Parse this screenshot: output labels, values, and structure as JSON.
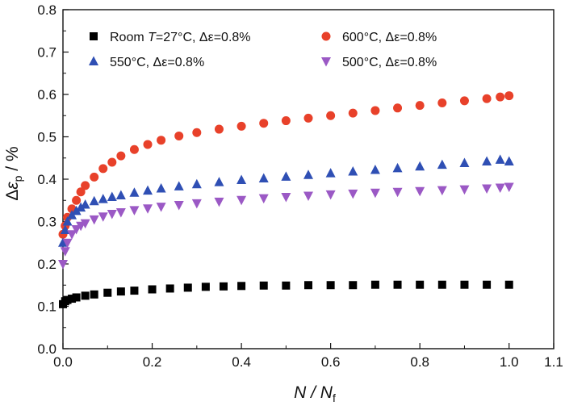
{
  "chart_data": {
    "type": "scatter",
    "xlabel": "N / Nf",
    "ylabel": "Δεp / %",
    "xlim": [
      0.0,
      1.1
    ],
    "ylim": [
      0.0,
      0.8
    ],
    "xticks": [
      "0.0",
      "0.2",
      "0.4",
      "0.6",
      "0.8",
      "1.0",
      "1.1"
    ],
    "yticks": [
      "0.0",
      "0.1",
      "0.2",
      "0.3",
      "0.4",
      "0.5",
      "0.6",
      "0.7",
      "0.8"
    ],
    "grid": false,
    "legend_position": "top",
    "series": [
      {
        "name": "Room T=27°C, Δε=0.8%",
        "marker": "square",
        "color": "#000000",
        "x": [
          0.0,
          0.005,
          0.01,
          0.02,
          0.03,
          0.05,
          0.07,
          0.1,
          0.13,
          0.16,
          0.2,
          0.24,
          0.28,
          0.32,
          0.36,
          0.4,
          0.45,
          0.5,
          0.55,
          0.6,
          0.65,
          0.7,
          0.75,
          0.8,
          0.85,
          0.9,
          0.95,
          1.0
        ],
        "y": [
          0.105,
          0.112,
          0.115,
          0.118,
          0.121,
          0.125,
          0.128,
          0.132,
          0.135,
          0.137,
          0.14,
          0.142,
          0.144,
          0.146,
          0.147,
          0.148,
          0.149,
          0.149,
          0.15,
          0.15,
          0.15,
          0.151,
          0.151,
          0.151,
          0.151,
          0.151,
          0.151,
          0.151
        ]
      },
      {
        "name": "600°C, Δε=0.8%",
        "marker": "circle",
        "color": "#e8412a",
        "x": [
          0.0,
          0.005,
          0.01,
          0.02,
          0.03,
          0.04,
          0.05,
          0.07,
          0.09,
          0.11,
          0.13,
          0.16,
          0.19,
          0.22,
          0.26,
          0.3,
          0.35,
          0.4,
          0.45,
          0.5,
          0.55,
          0.6,
          0.65,
          0.7,
          0.75,
          0.8,
          0.85,
          0.9,
          0.95,
          0.98,
          1.0
        ],
        "y": [
          0.27,
          0.29,
          0.31,
          0.33,
          0.35,
          0.37,
          0.385,
          0.405,
          0.425,
          0.44,
          0.455,
          0.47,
          0.482,
          0.492,
          0.502,
          0.51,
          0.518,
          0.525,
          0.532,
          0.538,
          0.544,
          0.55,
          0.556,
          0.562,
          0.568,
          0.574,
          0.58,
          0.585,
          0.59,
          0.594,
          0.597
        ]
      },
      {
        "name": "550°C, Δε=0.8%",
        "marker": "triangle-up",
        "color": "#2f4fb4",
        "x": [
          0.0,
          0.005,
          0.01,
          0.02,
          0.03,
          0.04,
          0.05,
          0.07,
          0.09,
          0.11,
          0.13,
          0.16,
          0.19,
          0.22,
          0.26,
          0.3,
          0.35,
          0.4,
          0.45,
          0.5,
          0.55,
          0.6,
          0.65,
          0.7,
          0.75,
          0.8,
          0.85,
          0.9,
          0.95,
          0.98,
          1.0
        ],
        "y": [
          0.25,
          0.28,
          0.3,
          0.315,
          0.325,
          0.333,
          0.34,
          0.348,
          0.353,
          0.358,
          0.362,
          0.368,
          0.373,
          0.378,
          0.383,
          0.388,
          0.393,
          0.398,
          0.402,
          0.406,
          0.41,
          0.414,
          0.418,
          0.422,
          0.426,
          0.43,
          0.434,
          0.438,
          0.442,
          0.446,
          0.442
        ]
      },
      {
        "name": "500°C, Δε=0.8%",
        "marker": "triangle-down",
        "color": "#9b59c5",
        "x": [
          0.0,
          0.005,
          0.01,
          0.02,
          0.03,
          0.04,
          0.05,
          0.07,
          0.09,
          0.11,
          0.13,
          0.16,
          0.19,
          0.22,
          0.26,
          0.3,
          0.35,
          0.4,
          0.45,
          0.5,
          0.55,
          0.6,
          0.65,
          0.7,
          0.75,
          0.8,
          0.85,
          0.9,
          0.95,
          0.98,
          1.0
        ],
        "y": [
          0.2,
          0.23,
          0.25,
          0.27,
          0.282,
          0.29,
          0.296,
          0.305,
          0.312,
          0.318,
          0.322,
          0.327,
          0.331,
          0.335,
          0.339,
          0.343,
          0.347,
          0.351,
          0.355,
          0.358,
          0.361,
          0.364,
          0.366,
          0.368,
          0.37,
          0.372,
          0.374,
          0.376,
          0.378,
          0.38,
          0.382
        ]
      }
    ],
    "legend": [
      {
        "label_before": "Room ",
        "label_italic": "T",
        "label_after": "=27°C, Δε=0.8%",
        "series": 0
      },
      {
        "label_before": "600°C, Δε=0.8%",
        "label_italic": "",
        "label_after": "",
        "series": 1
      },
      {
        "label_before": "550°C, Δε=0.8%",
        "label_italic": "",
        "label_after": "",
        "series": 2
      },
      {
        "label_before": "500°C, Δε=0.8%",
        "label_italic": "",
        "label_after": "",
        "series": 3
      }
    ]
  }
}
